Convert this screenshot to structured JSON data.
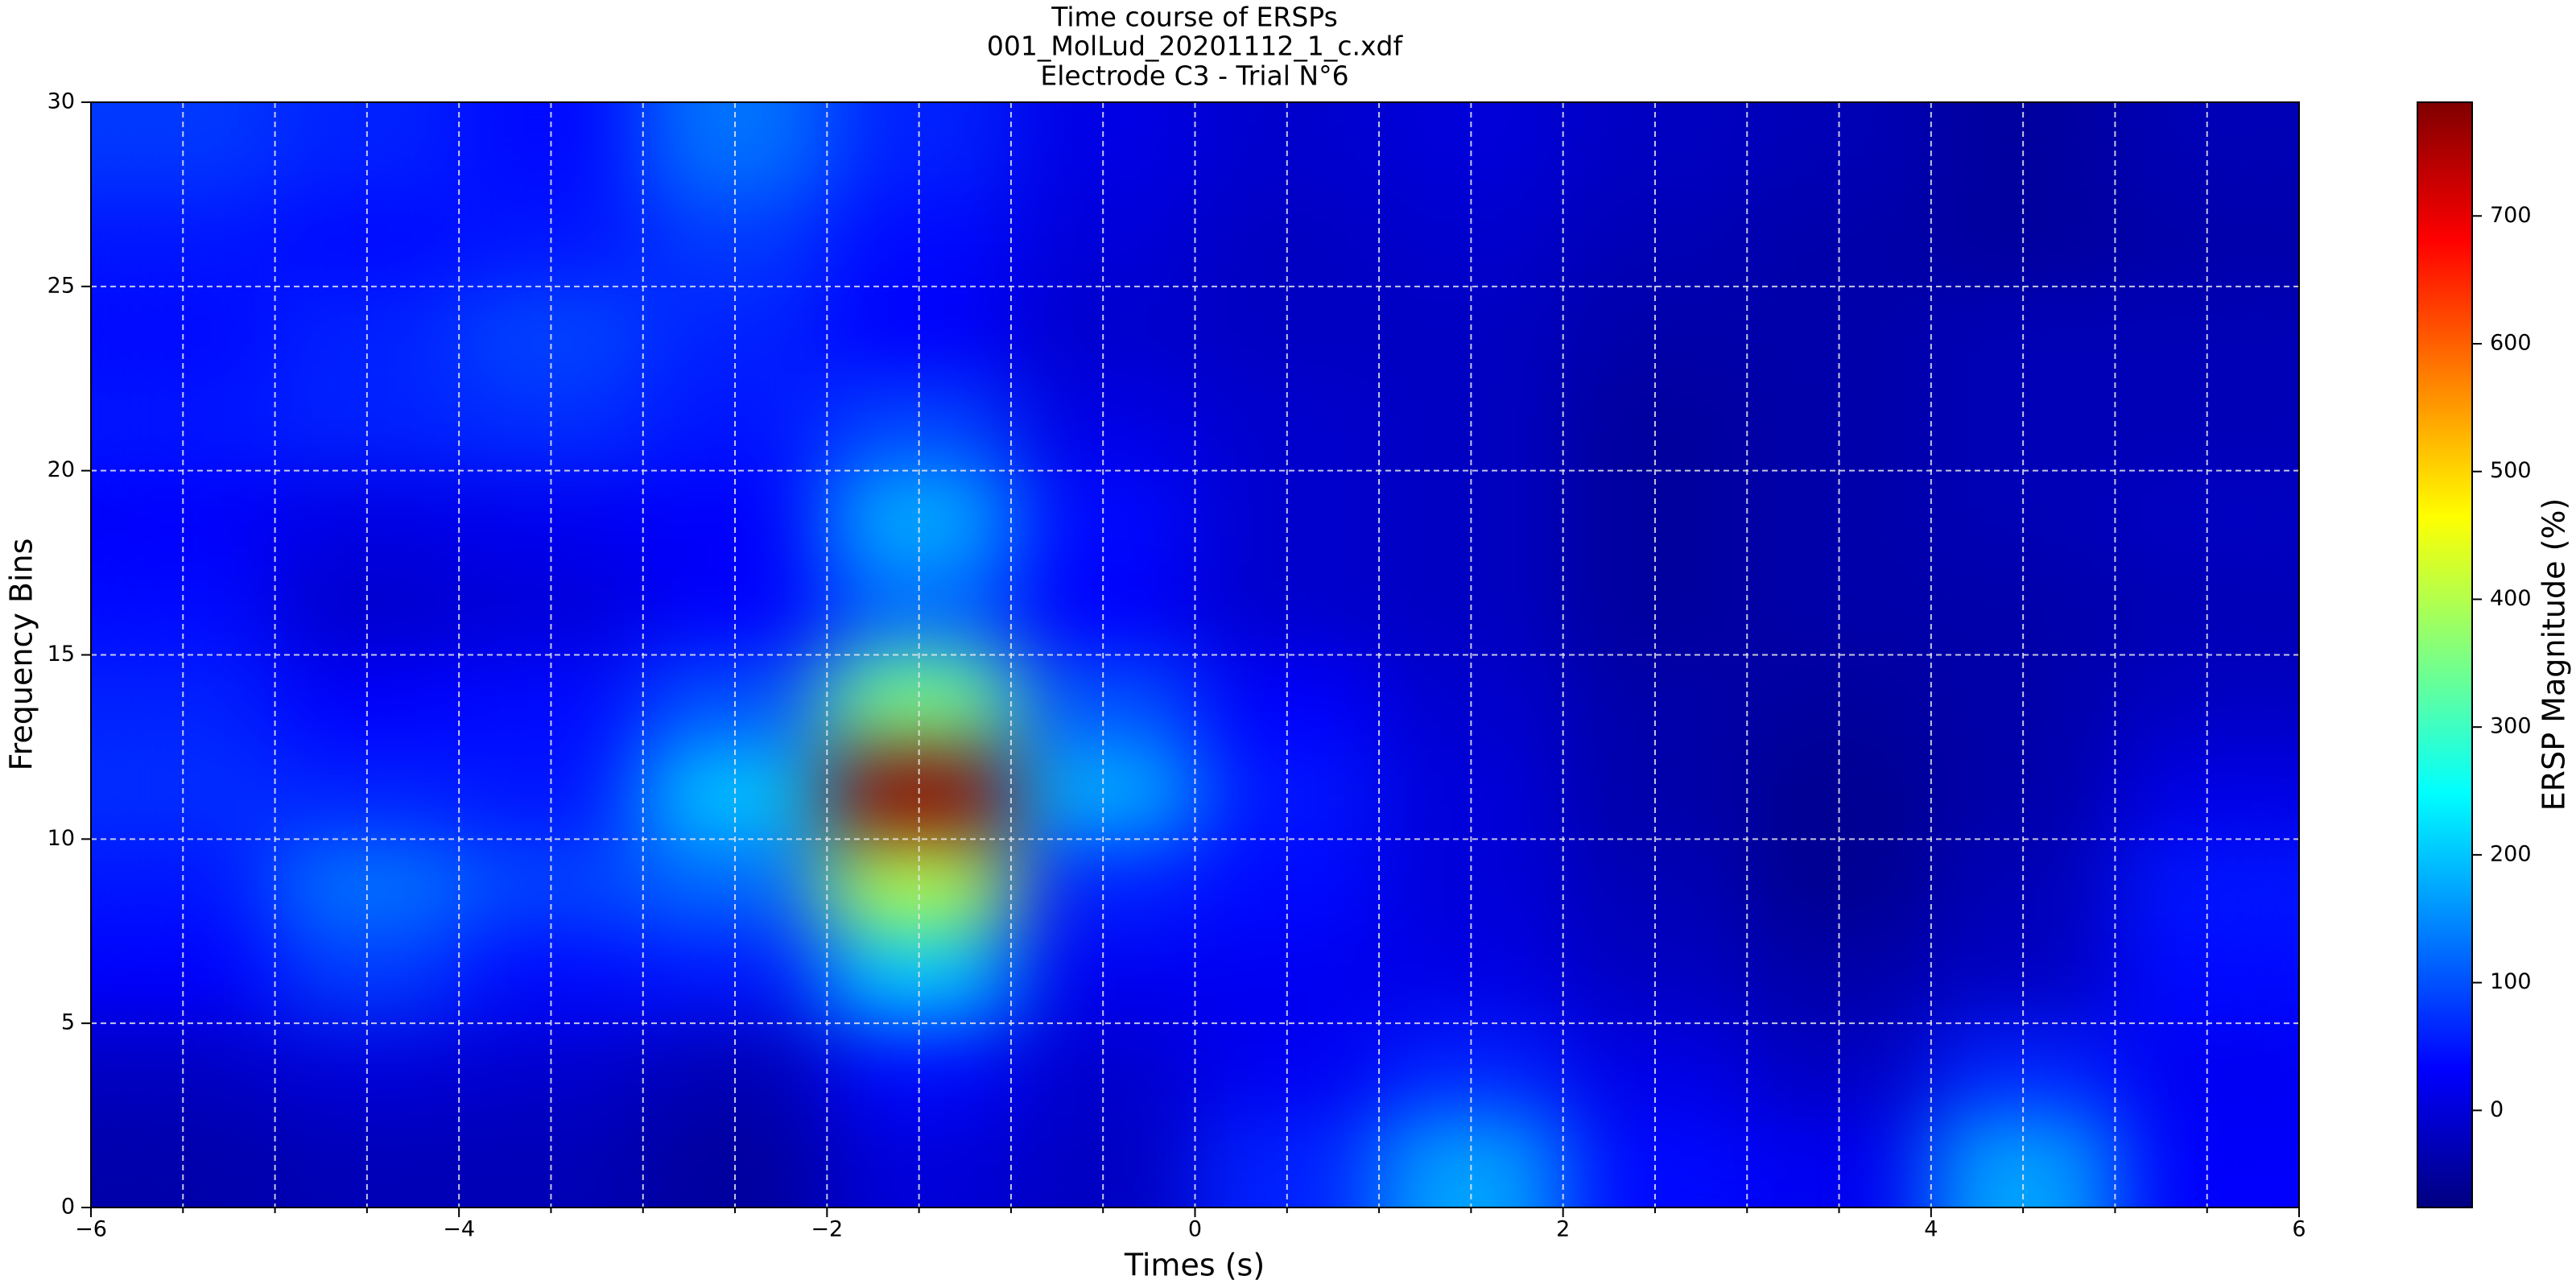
{
  "chart_data": {
    "type": "heatmap",
    "title": [
      "Time course of ERSPs",
      "001_MolLud_20201112_1_c.xdf",
      "Electrode C3 - Trial N°6"
    ],
    "xlabel": "Times (s)",
    "ylabel": "Frequency Bins",
    "xlim": [
      -6,
      6
    ],
    "ylim": [
      0,
      30
    ],
    "xticks": [
      {
        "value": -6,
        "label": "−6"
      },
      {
        "value": -4,
        "label": "−4"
      },
      {
        "value": -2,
        "label": "−2"
      },
      0,
      2,
      4,
      6
    ],
    "xminorticks": [
      -5.5,
      -5,
      -4.5,
      -3.5,
      -3,
      -2.5,
      -1.5,
      -1,
      -0.5,
      0.5,
      1,
      1.5,
      2.5,
      3,
      3.5,
      4.5,
      5,
      5.5
    ],
    "yticks": [
      0,
      5,
      10,
      15,
      20,
      25,
      30
    ],
    "grid": true,
    "colormap": "jet",
    "z": [
      [
        -40,
        -30,
        -30,
        -50,
        0,
        -20,
        60,
        170,
        40,
        20,
        170,
        30
      ],
      [
        -20,
        0,
        -10,
        -30,
        40,
        -10,
        20,
        60,
        10,
        -20,
        60,
        20
      ],
      [
        30,
        80,
        40,
        50,
        200,
        20,
        20,
        10,
        -20,
        -40,
        -20,
        40
      ],
      [
        50,
        130,
        90,
        120,
        400,
        60,
        40,
        0,
        -30,
        -60,
        -30,
        50
      ],
      [
        70,
        60,
        50,
        200,
        780,
        180,
        50,
        0,
        -40,
        -60,
        -40,
        10
      ],
      [
        60,
        30,
        40,
        100,
        350,
        100,
        30,
        -10,
        -40,
        -50,
        -40,
        -20
      ],
      [
        40,
        -10,
        0,
        30,
        120,
        30,
        -10,
        -20,
        -50,
        -40,
        -40,
        -30
      ],
      [
        30,
        10,
        20,
        30,
        180,
        40,
        -10,
        -20,
        -50,
        -40,
        -30,
        -20
      ],
      [
        50,
        60,
        70,
        50,
        90,
        10,
        -10,
        -20,
        -50,
        -40,
        -30,
        -30
      ],
      [
        40,
        60,
        90,
        60,
        30,
        -10,
        -20,
        -20,
        -40,
        -40,
        -30,
        -30
      ],
      [
        50,
        40,
        50,
        80,
        40,
        0,
        -20,
        -10,
        -30,
        -40,
        -50,
        -40
      ],
      [
        80,
        60,
        40,
        130,
        60,
        10,
        -10,
        0,
        -20,
        -30,
        -50,
        -30
      ]
    ],
    "colorbar": {
      "label": "ERSP Magnitude (%)",
      "lim": [
        -76,
        789
      ],
      "ticks": [
        0,
        100,
        200,
        300,
        400,
        500,
        600,
        700
      ]
    }
  }
}
